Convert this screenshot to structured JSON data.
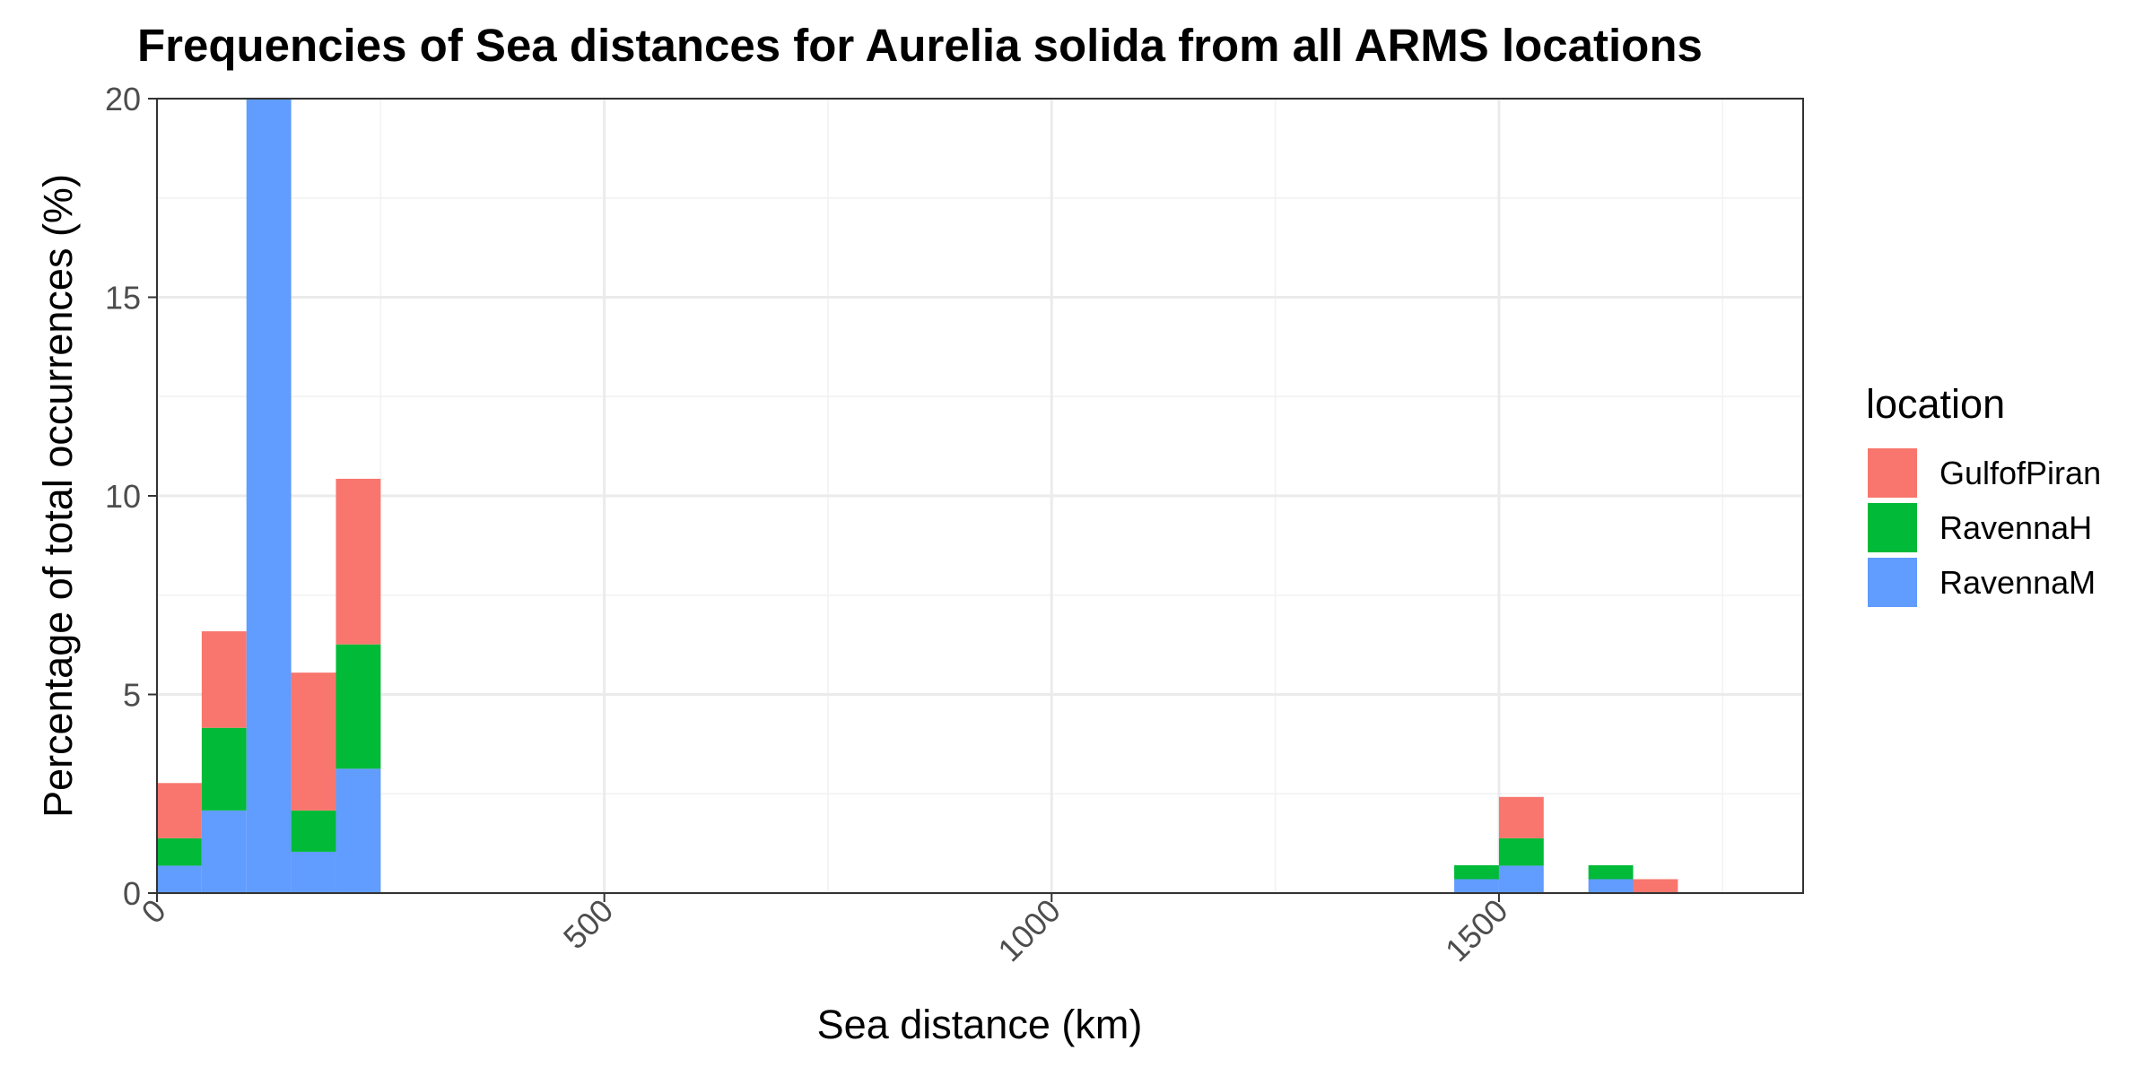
{
  "chart_data": {
    "type": "bar",
    "stacked": true,
    "title": "Frequencies of Sea distances for Aurelia solida from all ARMS locations",
    "xlabel": "Sea distance (km)",
    "ylabel": "Percentage of total occurrences (%)",
    "xlim": [
      0,
      1840
    ],
    "ylim": [
      0,
      20
    ],
    "bin_width": 50,
    "x_ticks": [
      0,
      500,
      1000,
      1500
    ],
    "x_tick_labels": [
      "0",
      "500",
      "1000",
      "1500"
    ],
    "y_ticks": [
      0,
      5,
      10,
      15,
      20
    ],
    "y_tick_labels": [
      "0",
      "5",
      "10",
      "15",
      "20"
    ],
    "grid": true,
    "legend": {
      "title": "location",
      "position": "right"
    },
    "x": [
      25,
      75,
      125,
      175,
      225,
      1475,
      1525,
      1625,
      1675
    ],
    "series": [
      {
        "name": "RavennaM",
        "color": "#619CFF",
        "values": [
          0.69,
          2.08,
          20.0,
          1.04,
          3.13,
          0.35,
          0.69,
          0.35,
          0.0
        ]
      },
      {
        "name": "RavennaH",
        "color": "#00BA38",
        "values": [
          0.69,
          2.08,
          0.0,
          1.04,
          3.13,
          0.35,
          0.69,
          0.35,
          0.0
        ]
      },
      {
        "name": "GulfofPiran",
        "color": "#F8766D",
        "values": [
          1.39,
          2.43,
          0.0,
          3.47,
          4.17,
          0.0,
          1.04,
          0.0,
          0.35
        ]
      }
    ],
    "legend_order": [
      "GulfofPiran",
      "RavennaH",
      "RavennaM"
    ]
  }
}
